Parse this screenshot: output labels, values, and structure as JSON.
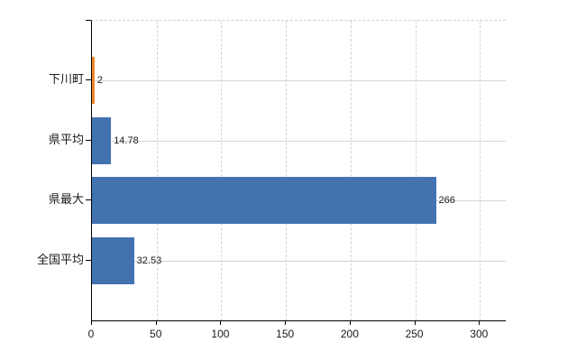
{
  "chart_data": {
    "type": "bar",
    "orientation": "horizontal",
    "title": "",
    "xlabel": "",
    "ylabel": "",
    "categories": [
      "下川町",
      "県平均",
      "県最大",
      "全国平均"
    ],
    "values": [
      2,
      14.78,
      266,
      32.53
    ],
    "value_labels": [
      "2",
      "14.78",
      "266",
      "32.53"
    ],
    "bar_colors": [
      "#F0872B",
      "#4272B0",
      "#4272B0",
      "#4272B0"
    ],
    "x_ticks": [
      0,
      50,
      100,
      150,
      200,
      250,
      300
    ],
    "x_tick_labels": [
      "0",
      "50",
      "100",
      "150",
      "200",
      "250",
      "300"
    ],
    "xlim": [
      0,
      320
    ],
    "grid": true,
    "grid_horizontal": "solid",
    "grid_vertical": "dashed",
    "legend": false
  },
  "colors": {
    "axis": "#000000",
    "grid": "#d5d5d5",
    "text": "#1a1a1a",
    "background": "#ffffff",
    "bar_blue": "#4272B0",
    "bar_orange": "#F0872B"
  }
}
